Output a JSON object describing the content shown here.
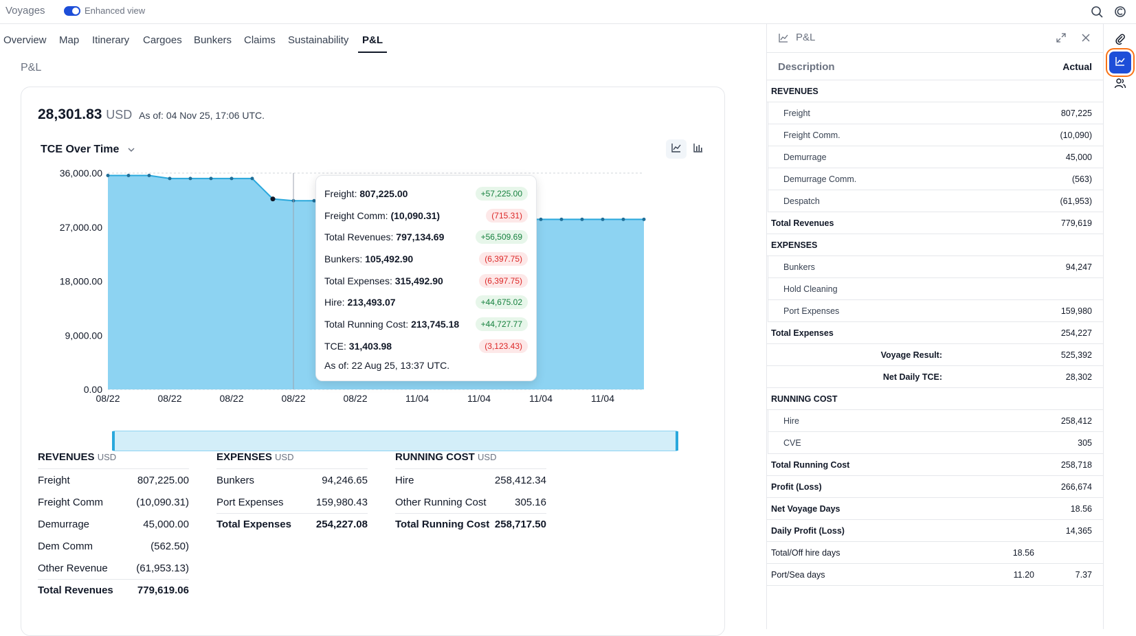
{
  "topbar": {
    "app_title": "Voyages",
    "toggle_label": "Enhanced view",
    "toggle_on": true,
    "icons": [
      "search-icon",
      "currency-icon"
    ]
  },
  "tabs": [
    {
      "label": "Overview"
    },
    {
      "label": "Map"
    },
    {
      "label": "Itinerary"
    },
    {
      "label": "Cargoes"
    },
    {
      "label": "Bunkers"
    },
    {
      "label": "Claims"
    },
    {
      "label": "Sustainability"
    },
    {
      "label": "P&L",
      "active": true
    }
  ],
  "page_label": "P&L",
  "summary": {
    "value": "28,301.83",
    "currency": "USD",
    "as_of": "As of: 04 Nov 25, 17:06 UTC."
  },
  "chart_selector": "TCE Over Time",
  "chart_data": {
    "type": "area",
    "ylim": [
      0,
      36000
    ],
    "yticks": [
      "0.00",
      "9,000.00",
      "18,000.00",
      "27,000.00",
      "36,000.00"
    ],
    "ytick_values": [
      0,
      9000,
      18000,
      27000,
      36000
    ],
    "xticks": [
      "08/22",
      "08/22",
      "08/22",
      "08/22",
      "08/22",
      "11/04",
      "11/04",
      "11/04",
      "11/04"
    ],
    "values": [
      35600,
      35600,
      35600,
      35100,
      35100,
      35100,
      35100,
      35100,
      31700,
      31400,
      31400,
      28500,
      28400,
      28300,
      28300,
      28300,
      28300,
      28300,
      28300,
      28300,
      28300,
      28300,
      28300,
      28300,
      28300,
      28300,
      28300
    ],
    "fill_color": "#8dd3f2",
    "line_color": "#2aa8dc",
    "grid": true
  },
  "tooltip": {
    "rows": [
      {
        "label": "Freight:",
        "value": "807,225.00",
        "delta": "+57,225.00",
        "positive": true
      },
      {
        "label": "Freight Comm:",
        "value": "(10,090.31)",
        "delta": "(715.31)",
        "positive": false
      },
      {
        "label": "Total Revenues:",
        "value": "797,134.69",
        "delta": "+56,509.69",
        "positive": true
      },
      {
        "label": "Bunkers:",
        "value": "105,492.90",
        "delta": "(6,397.75)",
        "positive": false
      },
      {
        "label": "Total Expenses:",
        "value": "315,492.90",
        "delta": "(6,397.75)",
        "positive": false
      },
      {
        "label": "Hire:",
        "value": "213,493.07",
        "delta": "+44,675.02",
        "positive": true
      },
      {
        "label": "Total Running Cost:",
        "value": "213,745.18",
        "delta": "+44,727.77",
        "positive": true
      },
      {
        "label": "TCE:",
        "value": "31,403.98",
        "delta": "(3,123.43)",
        "positive": false
      }
    ],
    "as_of": "As of: 22 Aug 25, 13:37 UTC."
  },
  "revenues": {
    "title": "REVENUES",
    "currency": "USD",
    "rows": [
      {
        "label": "Freight",
        "value": "807,225.00"
      },
      {
        "label": "Freight Comm",
        "value": "(10,090.31)"
      },
      {
        "label": "Demurrage",
        "value": "45,000.00"
      },
      {
        "label": "Dem Comm",
        "value": "(562.50)"
      },
      {
        "label": "Other Revenue",
        "value": "(61,953.13)"
      }
    ],
    "total": {
      "label": "Total Revenues",
      "value": "779,619.06"
    }
  },
  "expenses": {
    "title": "EXPENSES",
    "currency": "USD",
    "rows": [
      {
        "label": "Bunkers",
        "value": "94,246.65"
      },
      {
        "label": "Port Expenses",
        "value": "159,980.43"
      }
    ],
    "total": {
      "label": "Total Expenses",
      "value": "254,227.08"
    }
  },
  "running_cost": {
    "title": "RUNNING COST",
    "currency": "USD",
    "rows": [
      {
        "label": "Hire",
        "value": "258,412.34"
      },
      {
        "label": "Other Running Cost",
        "value": "305.16"
      }
    ],
    "total": {
      "label": "Total Running Cost",
      "value": "258,717.50"
    }
  },
  "side_panel": {
    "title": "P&L",
    "col_description": "Description",
    "col_actual": "Actual",
    "rows": [
      {
        "label": "REVENUES",
        "value": "",
        "style": "bold"
      },
      {
        "label": "Freight",
        "value": "807,225",
        "style": "sub"
      },
      {
        "label": "Freight Comm.",
        "value": "(10,090)",
        "style": "sub"
      },
      {
        "label": "Demurrage",
        "value": "45,000",
        "style": "sub"
      },
      {
        "label": "Demurrage Comm.",
        "value": "(563)",
        "style": "sub"
      },
      {
        "label": "Despatch",
        "value": "(61,953)",
        "style": "sub"
      },
      {
        "label": "Total Revenues",
        "value": "779,619",
        "style": "bold"
      },
      {
        "label": "EXPENSES",
        "value": "",
        "style": "bold"
      },
      {
        "label": "Bunkers",
        "value": "94,247",
        "style": "sub"
      },
      {
        "label": "Hold Cleaning",
        "value": "",
        "style": "sub"
      },
      {
        "label": "Port Expenses",
        "value": "159,980",
        "style": "sub"
      },
      {
        "label": "Total Expenses",
        "value": "254,227",
        "style": "bold"
      },
      {
        "label": "Voyage Result:",
        "value": "525,392",
        "style": "center"
      },
      {
        "label": "Net Daily TCE:",
        "value": "28,302",
        "style": "center"
      },
      {
        "label": "RUNNING COST",
        "value": "",
        "style": "bold"
      },
      {
        "label": "Hire",
        "value": "258,412",
        "style": "sub"
      },
      {
        "label": "CVE",
        "value": "305",
        "style": "sub"
      },
      {
        "label": "Total Running Cost",
        "value": "258,718",
        "style": "bold"
      },
      {
        "label": "Profit (Loss)",
        "value": "266,674",
        "style": "bold"
      },
      {
        "label": "Net Voyage Days",
        "value": "18.56",
        "style": "bold"
      },
      {
        "label": "Daily Profit (Loss)",
        "value": "14,365",
        "style": "bold"
      },
      {
        "label": "Total/Off hire days",
        "value": "",
        "mid": "18.56",
        "style": "plain"
      },
      {
        "label": "Port/Sea days",
        "value": "7.37",
        "mid": "11.20",
        "style": "plain"
      }
    ]
  },
  "rail": {
    "items": [
      "paperclip-icon",
      "chart-line-icon",
      "users-icon"
    ],
    "active": "chart-line-icon"
  },
  "colors": {
    "accent": "#1d4ed8",
    "highlight": "#f97316",
    "positive": "#15803d",
    "negative": "#dc2626"
  }
}
